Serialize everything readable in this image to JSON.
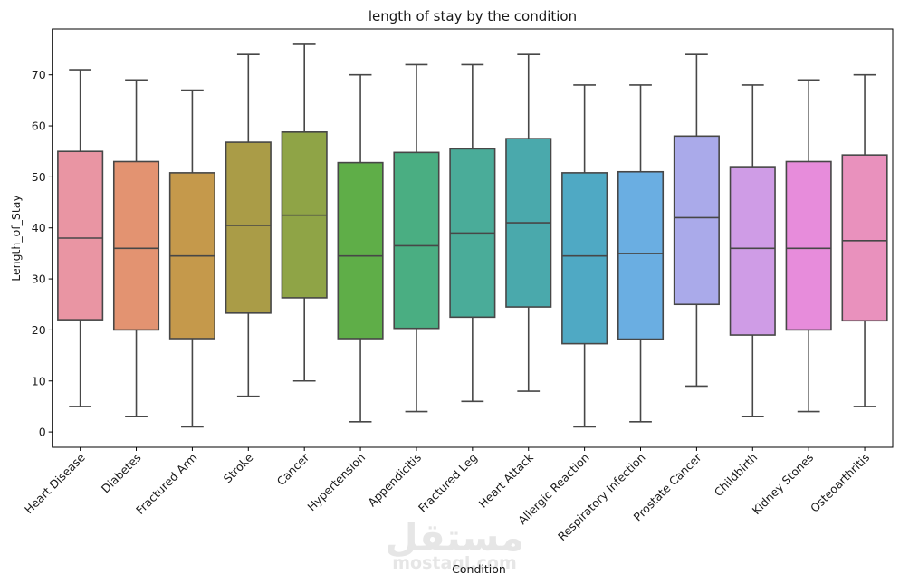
{
  "chart_data": {
    "type": "boxplot",
    "title": "length of stay by the condition",
    "xlabel": "Condition",
    "ylabel": "Length_of_Stay",
    "ylim": [
      -3,
      79
    ],
    "yticks": [
      0,
      10,
      20,
      30,
      40,
      50,
      60,
      70
    ],
    "grid": false,
    "legend": "none",
    "categories": [
      "Heart Disease",
      "Diabetes",
      "Fractured Arm",
      "Stroke",
      "Cancer",
      "Hypertension",
      "Appendicitis",
      "Fractured Leg",
      "Heart Attack",
      "Allergic Reaction",
      "Respiratory Infection",
      "Prostate Cancer",
      "Childbirth",
      "Kidney Stones",
      "Osteoarthritis"
    ],
    "boxes": [
      {
        "category": "Heart Disease",
        "whisker_low": 5,
        "q1": 22,
        "median": 38,
        "q3": 55,
        "whisker_high": 71,
        "color": "#e995a3"
      },
      {
        "category": "Diabetes",
        "whisker_low": 3,
        "q1": 20,
        "median": 36,
        "q3": 53,
        "whisker_high": 69,
        "color": "#e39371"
      },
      {
        "category": "Fractured Arm",
        "whisker_low": 1,
        "q1": 18.3,
        "median": 34.5,
        "q3": 50.8,
        "whisker_high": 67,
        "color": "#c5994b"
      },
      {
        "category": "Stroke",
        "whisker_low": 7,
        "q1": 23.3,
        "median": 40.5,
        "q3": 56.8,
        "whisker_high": 74,
        "color": "#aa9c47"
      },
      {
        "category": "Cancer",
        "whisker_low": 10,
        "q1": 26.3,
        "median": 42.5,
        "q3": 58.8,
        "whisker_high": 76,
        "color": "#8fa446"
      },
      {
        "category": "Hypertension",
        "whisker_low": 2,
        "q1": 18.3,
        "median": 34.5,
        "q3": 52.8,
        "whisker_high": 70,
        "color": "#5fae48"
      },
      {
        "category": "Appendicitis",
        "whisker_low": 4,
        "q1": 20.3,
        "median": 36.5,
        "q3": 54.8,
        "whisker_high": 72,
        "color": "#4aae82"
      },
      {
        "category": "Fractured Leg",
        "whisker_low": 6,
        "q1": 22.5,
        "median": 39,
        "q3": 55.5,
        "whisker_high": 72,
        "color": "#4aac99"
      },
      {
        "category": "Heart Attack",
        "whisker_low": 8,
        "q1": 24.5,
        "median": 41,
        "q3": 57.5,
        "whisker_high": 74,
        "color": "#4aa9ac"
      },
      {
        "category": "Allergic Reaction",
        "whisker_low": 1,
        "q1": 17.3,
        "median": 34.5,
        "q3": 50.8,
        "whisker_high": 68,
        "color": "#4fa9c4"
      },
      {
        "category": "Respiratory Infection",
        "whisker_low": 2,
        "q1": 18.2,
        "median": 35,
        "q3": 51,
        "whisker_high": 68,
        "color": "#6aaee2"
      },
      {
        "category": "Prostate Cancer",
        "whisker_low": 9,
        "q1": 25,
        "median": 42,
        "q3": 58,
        "whisker_high": 74,
        "color": "#aaaaea"
      },
      {
        "category": "Childbirth",
        "whisker_low": 3,
        "q1": 19,
        "median": 36,
        "q3": 52,
        "whisker_high": 68,
        "color": "#cf9ce6"
      },
      {
        "category": "Kidney Stones",
        "whisker_low": 4,
        "q1": 20,
        "median": 36,
        "q3": 53,
        "whisker_high": 69,
        "color": "#e78cdb"
      },
      {
        "category": "Osteoarthritis",
        "whisker_low": 5,
        "q1": 21.8,
        "median": 37.5,
        "q3": 54.3,
        "whisker_high": 70,
        "color": "#e991bd"
      }
    ],
    "line_color": "#474747"
  },
  "watermark": {
    "arabic": "مستقل",
    "latin": "mostaql.com"
  }
}
